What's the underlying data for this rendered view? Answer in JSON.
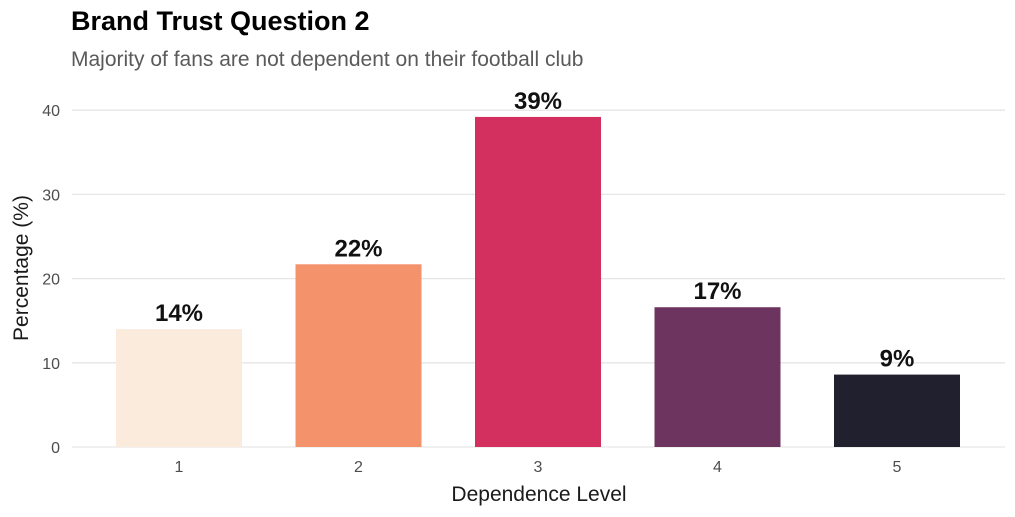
{
  "chart_data": {
    "type": "bar",
    "title": "Brand Trust Question 2",
    "subtitle": "Majority of fans are not dependent on their football club",
    "xlabel": "Dependence Level",
    "ylabel": "Percentage (%)",
    "categories": [
      "1",
      "2",
      "3",
      "4",
      "5"
    ],
    "values": [
      14,
      21.7,
      39.2,
      16.6,
      8.6
    ],
    "data_labels": [
      "14%",
      "22%",
      "39%",
      "17%",
      "9%"
    ],
    "colors": [
      "#FAEBDD",
      "#F4926B",
      "#D3305F",
      "#6E3460",
      "#20202F"
    ],
    "ylim": [
      0,
      41.5
    ],
    "yticks": [
      0,
      10,
      20,
      30,
      40
    ],
    "grid": true,
    "legend": "none"
  }
}
